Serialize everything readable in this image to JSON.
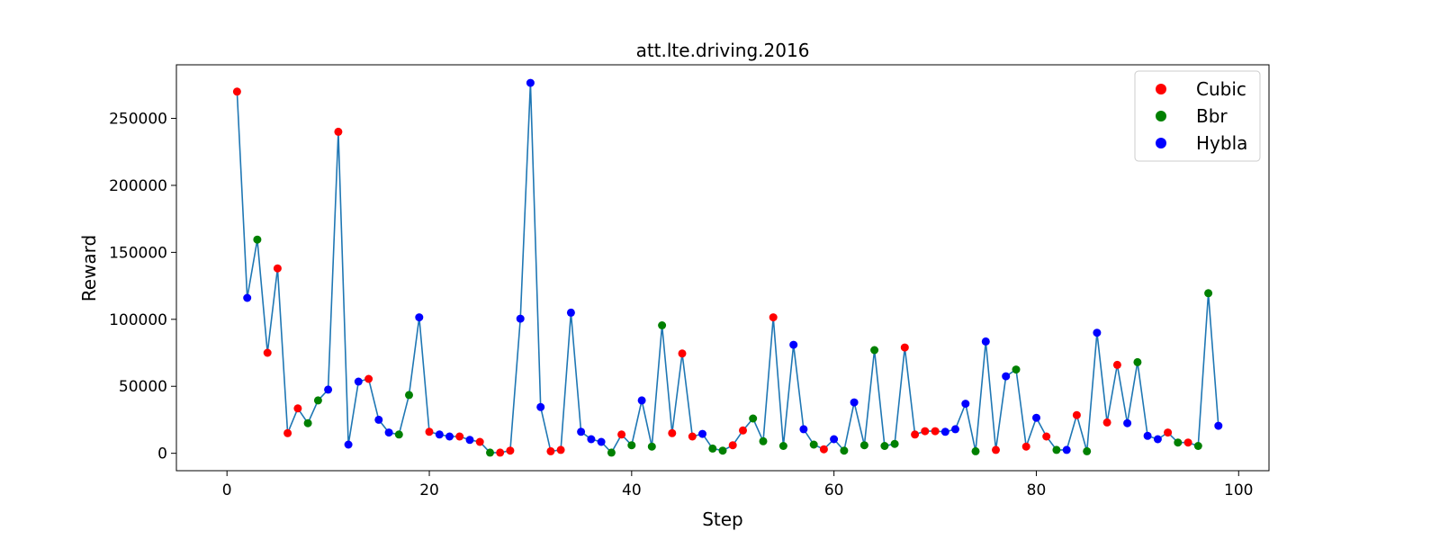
{
  "chart_data": {
    "type": "scatter",
    "title": "att.lte.driving.2016",
    "xlabel": "Step",
    "ylabel": "Reward",
    "xlim": [
      -5,
      103
    ],
    "ylim": [
      -13000,
      290000
    ],
    "xticks": [
      0,
      20,
      40,
      60,
      80,
      100
    ],
    "yticks": [
      0,
      50000,
      100000,
      150000,
      200000,
      250000
    ],
    "grid": false,
    "legend_position": "top-right",
    "line_color": "#1f77b4",
    "legend": [
      {
        "label": "Cubic",
        "color": "#ff0000"
      },
      {
        "label": "Bbr",
        "color": "#008000"
      },
      {
        "label": "Hybla",
        "color": "#0000ff"
      }
    ],
    "x": [
      1,
      2,
      3,
      4,
      5,
      6,
      7,
      8,
      9,
      10,
      11,
      12,
      13,
      14,
      15,
      16,
      17,
      18,
      19,
      20,
      21,
      22,
      23,
      24,
      25,
      26,
      27,
      28,
      29,
      30,
      31,
      32,
      33,
      34,
      35,
      36,
      37,
      38,
      39,
      40,
      41,
      42,
      43,
      44,
      45,
      46,
      47,
      48,
      49,
      50,
      51,
      52,
      53,
      54,
      55,
      56,
      57,
      58,
      59,
      60,
      61,
      62,
      63,
      64,
      65,
      66,
      67,
      68,
      69,
      70,
      71,
      72,
      73,
      74,
      75,
      76,
      77,
      78,
      79,
      80,
      81,
      82,
      83,
      84,
      85,
      86,
      87,
      88,
      89,
      90,
      91,
      92,
      93,
      94,
      95,
      96,
      97,
      98
    ],
    "y": [
      270000,
      116000,
      159500,
      75000,
      138000,
      15000,
      33500,
      22500,
      39500,
      47500,
      240000,
      6500,
      53500,
      55500,
      25000,
      15500,
      14000,
      43500,
      101500,
      16000,
      14000,
      12500,
      12500,
      10000,
      8500,
      500,
      500,
      2000,
      100500,
      276500,
      34500,
      1500,
      2500,
      105000,
      16000,
      10500,
      8500,
      500,
      14000,
      6000,
      39500,
      5000,
      95500,
      15000,
      74500,
      12500,
      14500,
      3500,
      2000,
      6000,
      17000,
      26000,
      9000,
      101500,
      5500,
      81000,
      18000,
      6500,
      3000,
      10500,
      2000,
      38000,
      6000,
      77000,
      5500,
      7000,
      79000,
      14000,
      16500,
      16500,
      16000,
      18000,
      37000,
      1500,
      83500,
      2500,
      57500,
      62500,
      5000,
      26500,
      12500,
      2500,
      2500,
      28500,
      1500,
      90000,
      23000,
      66000,
      22500,
      68000,
      13000,
      10500,
      15500,
      8000,
      8000,
      5500,
      119500,
      20500
    ],
    "methods": [
      "Cubic",
      "Hybla",
      "Bbr",
      "Cubic",
      "Cubic",
      "Cubic",
      "Cubic",
      "Bbr",
      "Bbr",
      "Hybla",
      "Cubic",
      "Hybla",
      "Hybla",
      "Cubic",
      "Hybla",
      "Hybla",
      "Bbr",
      "Bbr",
      "Hybla",
      "Cubic",
      "Hybla",
      "Hybla",
      "Cubic",
      "Hybla",
      "Cubic",
      "Bbr",
      "Cubic",
      "Cubic",
      "Hybla",
      "Hybla",
      "Hybla",
      "Cubic",
      "Cubic",
      "Hybla",
      "Hybla",
      "Hybla",
      "Hybla",
      "Bbr",
      "Cubic",
      "Bbr",
      "Hybla",
      "Bbr",
      "Bbr",
      "Cubic",
      "Cubic",
      "Cubic",
      "Hybla",
      "Bbr",
      "Bbr",
      "Cubic",
      "Cubic",
      "Bbr",
      "Bbr",
      "Cubic",
      "Bbr",
      "Hybla",
      "Hybla",
      "Bbr",
      "Cubic",
      "Hybla",
      "Bbr",
      "Hybla",
      "Bbr",
      "Bbr",
      "Bbr",
      "Bbr",
      "Cubic",
      "Cubic",
      "Cubic",
      "Cubic",
      "Hybla",
      "Hybla",
      "Hybla",
      "Bbr",
      "Hybla",
      "Cubic",
      "Hybla",
      "Bbr",
      "Cubic",
      "Hybla",
      "Cubic",
      "Bbr",
      "Hybla",
      "Cubic",
      "Bbr",
      "Hybla",
      "Cubic",
      "Cubic",
      "Hybla",
      "Bbr",
      "Hybla",
      "Hybla",
      "Cubic",
      "Bbr",
      "Cubic",
      "Bbr",
      "Bbr",
      "Hybla"
    ]
  }
}
